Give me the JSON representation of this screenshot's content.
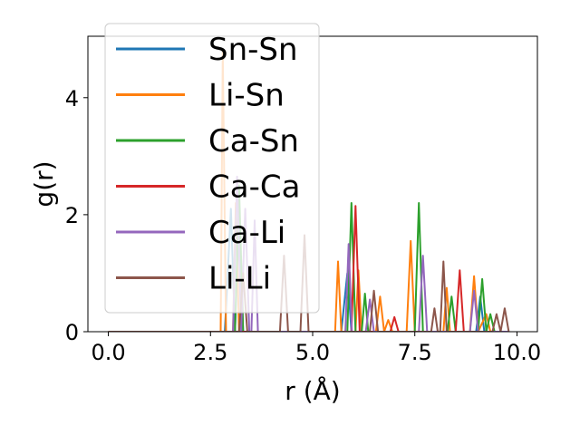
{
  "chart_data": {
    "type": "line",
    "title": "",
    "xlabel": "r (Å)",
    "ylabel": "g(r)",
    "xlim": [
      -0.5,
      10.5
    ],
    "ylim": [
      0,
      5.05
    ],
    "xticks": [
      0.0,
      2.5,
      5.0,
      7.5,
      10.0
    ],
    "xtick_labels": [
      "0.0",
      "2.5",
      "5.0",
      "7.5",
      "10.0"
    ],
    "yticks": [
      0,
      2,
      4
    ],
    "ytick_labels": [
      "0",
      "2",
      "4"
    ],
    "grid": false,
    "legend_position": "upper-left",
    "series": [
      {
        "name": "Sn-Sn",
        "color": "#1f77b4",
        "points": [
          [
            0,
            0
          ],
          [
            2.85,
            0
          ],
          [
            3.0,
            2.1
          ],
          [
            3.1,
            0
          ],
          [
            3.2,
            2.0
          ],
          [
            3.3,
            0
          ],
          [
            5.7,
            0
          ],
          [
            5.85,
            1.0
          ],
          [
            5.95,
            0
          ],
          [
            9.0,
            0
          ],
          [
            9.1,
            0.6
          ],
          [
            9.2,
            0
          ],
          [
            9.8,
            0
          ]
        ]
      },
      {
        "name": "Li-Sn",
        "color": "#ff7f0e",
        "points": [
          [
            0,
            0
          ],
          [
            2.75,
            0
          ],
          [
            2.8,
            4.8
          ],
          [
            2.88,
            0
          ],
          [
            3.05,
            0
          ],
          [
            3.12,
            2.2
          ],
          [
            3.2,
            0
          ],
          [
            5.55,
            0
          ],
          [
            5.62,
            1.2
          ],
          [
            5.7,
            0
          ],
          [
            6.05,
            0
          ],
          [
            6.12,
            1.05
          ],
          [
            6.2,
            0
          ],
          [
            6.55,
            0
          ],
          [
            6.65,
            0.6
          ],
          [
            6.75,
            0
          ],
          [
            6.85,
            0.2
          ],
          [
            6.95,
            0
          ],
          [
            7.3,
            0
          ],
          [
            7.4,
            1.55
          ],
          [
            7.5,
            0
          ],
          [
            8.2,
            0
          ],
          [
            8.28,
            0.75
          ],
          [
            8.36,
            0
          ],
          [
            8.85,
            0
          ],
          [
            8.95,
            0.95
          ],
          [
            9.05,
            0
          ],
          [
            9.25,
            0.3
          ],
          [
            9.35,
            0
          ],
          [
            9.8,
            0
          ]
        ]
      },
      {
        "name": "Ca-Sn",
        "color": "#2ca02c",
        "points": [
          [
            0,
            0
          ],
          [
            3.1,
            0
          ],
          [
            3.2,
            2.5
          ],
          [
            3.3,
            0
          ],
          [
            5.85,
            0
          ],
          [
            5.95,
            2.2
          ],
          [
            6.05,
            0
          ],
          [
            6.2,
            0
          ],
          [
            6.28,
            0.65
          ],
          [
            6.36,
            0
          ],
          [
            7.5,
            0
          ],
          [
            7.6,
            2.2
          ],
          [
            7.7,
            0
          ],
          [
            8.3,
            0
          ],
          [
            8.4,
            0.6
          ],
          [
            8.5,
            0
          ],
          [
            9.05,
            0
          ],
          [
            9.15,
            0.9
          ],
          [
            9.25,
            0
          ],
          [
            9.35,
            0.3
          ],
          [
            9.45,
            0
          ],
          [
            9.8,
            0
          ]
        ]
      },
      {
        "name": "Ca-Ca",
        "color": "#d62728",
        "points": [
          [
            0,
            0
          ],
          [
            5.95,
            0
          ],
          [
            6.05,
            2.15
          ],
          [
            6.15,
            0
          ],
          [
            6.9,
            0
          ],
          [
            7.0,
            0.25
          ],
          [
            7.1,
            0
          ],
          [
            8.5,
            0
          ],
          [
            8.6,
            1.05
          ],
          [
            8.7,
            0
          ],
          [
            9.8,
            0
          ]
        ]
      },
      {
        "name": "Ca-Li",
        "color": "#9467bd",
        "points": [
          [
            0,
            0
          ],
          [
            3.05,
            0
          ],
          [
            3.15,
            2.65
          ],
          [
            3.25,
            0
          ],
          [
            3.35,
            2.1
          ],
          [
            3.45,
            0
          ],
          [
            3.5,
            0
          ],
          [
            3.58,
            1.9
          ],
          [
            3.66,
            0
          ],
          [
            5.8,
            0
          ],
          [
            5.88,
            1.5
          ],
          [
            5.96,
            0
          ],
          [
            6.3,
            0
          ],
          [
            6.4,
            0.55
          ],
          [
            6.5,
            0
          ],
          [
            7.6,
            0
          ],
          [
            7.7,
            1.3
          ],
          [
            7.8,
            0
          ],
          [
            8.85,
            0
          ],
          [
            8.95,
            0.7
          ],
          [
            9.05,
            0
          ],
          [
            9.8,
            0
          ]
        ]
      },
      {
        "name": "Li-Li",
        "color": "#8c564b",
        "points": [
          [
            0,
            0
          ],
          [
            3.2,
            0
          ],
          [
            3.3,
            1.0
          ],
          [
            3.4,
            0
          ],
          [
            4.2,
            0
          ],
          [
            4.3,
            1.3
          ],
          [
            4.4,
            0
          ],
          [
            4.7,
            0
          ],
          [
            4.8,
            1.65
          ],
          [
            4.9,
            0
          ],
          [
            6.4,
            0
          ],
          [
            6.5,
            0.7
          ],
          [
            6.6,
            0
          ],
          [
            7.9,
            0
          ],
          [
            7.98,
            0.4
          ],
          [
            8.06,
            0
          ],
          [
            8.12,
            0
          ],
          [
            8.2,
            1.2
          ],
          [
            8.28,
            0
          ],
          [
            9.4,
            0
          ],
          [
            9.5,
            0.3
          ],
          [
            9.6,
            0
          ],
          [
            9.7,
            0.4
          ],
          [
            9.8,
            0
          ]
        ]
      }
    ]
  }
}
